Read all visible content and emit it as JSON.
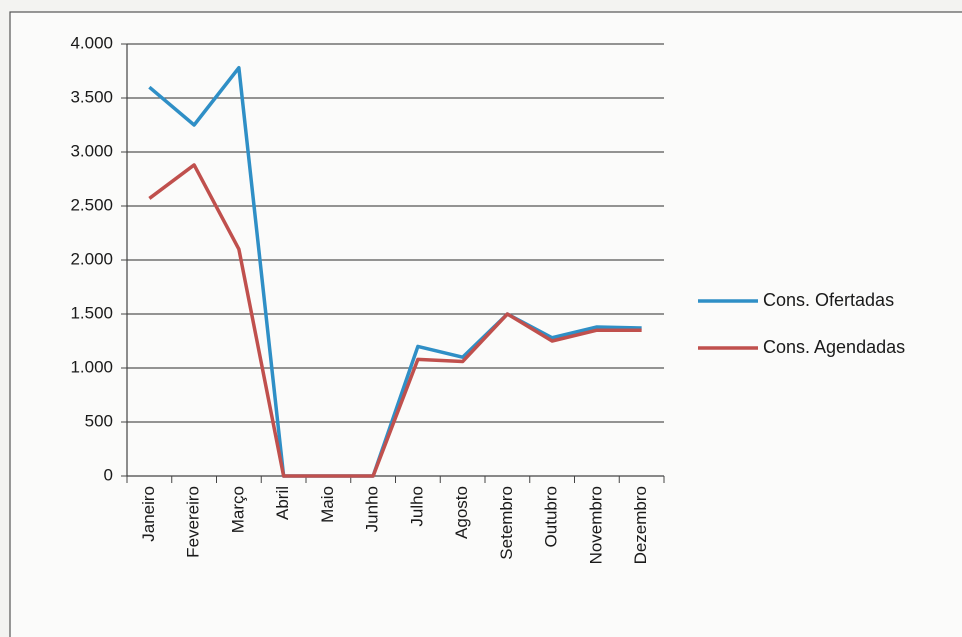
{
  "chart_data": {
    "type": "line",
    "categories": [
      "Janeiro",
      "Fevereiro",
      "Março",
      "Abril",
      "Maio",
      "Junho",
      "Julho",
      "Agosto",
      "Setembro",
      "Outubro",
      "Novembro",
      "Dezembro"
    ],
    "series": [
      {
        "name": "Cons. Ofertadas",
        "color": "#2f8fc6",
        "values": [
          3600,
          3250,
          3780,
          0,
          0,
          0,
          1200,
          1100,
          1500,
          1280,
          1380,
          1370
        ]
      },
      {
        "name": "Cons. Agendadas",
        "color": "#c0504d",
        "values": [
          2570,
          2880,
          2100,
          0,
          0,
          0,
          1080,
          1060,
          1500,
          1250,
          1350,
          1350
        ]
      }
    ],
    "ylim": [
      0,
      4000
    ],
    "yticks": [
      0,
      500,
      {
        "value": 1000,
        "label": "1.000"
      },
      {
        "value": 1500,
        "label": "1.500"
      },
      {
        "value": 2000,
        "label": "2.000"
      },
      {
        "value": 2500,
        "label": "2.500"
      },
      {
        "value": 3000,
        "label": "3.000"
      },
      {
        "value": 3500,
        "label": "3.500"
      },
      {
        "value": 4000,
        "label": "4.000"
      }
    ],
    "grid": true,
    "legend": "right"
  }
}
